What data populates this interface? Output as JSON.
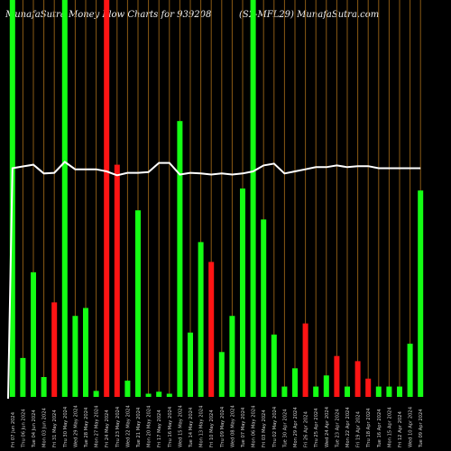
{
  "header": {
    "left": "MunafaSutra Money Flow Charts for 939208",
    "right": "(S2-MFL29) MunafaSutra.com"
  },
  "chart_data": {
    "type": "bar",
    "value_scale": "relative money flow (0–100, chart maximum = 100)",
    "bars": [
      {
        "label": "Fri 07 Jun 2024",
        "value": 100,
        "color": "green"
      },
      {
        "label": "Thu 06 Jun 2024",
        "value": 9.8,
        "color": "green"
      },
      {
        "label": "Tue 04 Jun 2024",
        "value": 31.4,
        "color": "green"
      },
      {
        "label": "Mon 03 Jun 2024",
        "value": 5.0,
        "color": "green"
      },
      {
        "label": "Fri 31 May 2024",
        "value": 23.8,
        "color": "red"
      },
      {
        "label": "Thu 30 May 2024",
        "value": 100,
        "color": "green"
      },
      {
        "label": "Wed 29 May 2024",
        "value": 20.4,
        "color": "green"
      },
      {
        "label": "Tue 28 May 2024",
        "value": 22.4,
        "color": "green"
      },
      {
        "label": "Mon 27 May 2024",
        "value": 1.5,
        "color": "green"
      },
      {
        "label": "Fri 24 May 2024",
        "value": 100,
        "color": "red"
      },
      {
        "label": "Thu 23 May 2024",
        "value": 58.5,
        "color": "red"
      },
      {
        "label": "Wed 22 May 2024",
        "value": 4.1,
        "color": "green"
      },
      {
        "label": "Tue 21 May 2024",
        "value": 47.0,
        "color": "green"
      },
      {
        "label": "Mon 20 May 2024",
        "value": 0.8,
        "color": "green"
      },
      {
        "label": "Fri 17 May 2024",
        "value": 1.3,
        "color": "green"
      },
      {
        "label": "Thu 16 May 2024",
        "value": 0.8,
        "color": "green"
      },
      {
        "label": "Wed 15 May 2024",
        "value": 69.5,
        "color": "green"
      },
      {
        "label": "Tue 14 May 2024",
        "value": 16.2,
        "color": "green"
      },
      {
        "label": "Mon 13 May 2024",
        "value": 39.0,
        "color": "green"
      },
      {
        "label": "Fri 10 May 2024",
        "value": 34.0,
        "color": "red"
      },
      {
        "label": "Thu 09 May 2024",
        "value": 11.3,
        "color": "green"
      },
      {
        "label": "Wed 08 May 2024",
        "value": 20.4,
        "color": "green"
      },
      {
        "label": "Tue 07 May 2024",
        "value": 52.5,
        "color": "green"
      },
      {
        "label": "Mon 06 May 2024",
        "value": 100,
        "color": "green"
      },
      {
        "label": "Fri 03 May 2024",
        "value": 44.7,
        "color": "green"
      },
      {
        "label": "Thu 02 May 2024",
        "value": 15.7,
        "color": "green"
      },
      {
        "label": "Tue 30 Apr 2024",
        "value": 2.6,
        "color": "green"
      },
      {
        "label": "Mon 29 Apr 2024",
        "value": 7.2,
        "color": "green"
      },
      {
        "label": "Fri 26 Apr 2024",
        "value": 18.5,
        "color": "red"
      },
      {
        "label": "Thu 25 Apr 2024",
        "value": 2.6,
        "color": "green"
      },
      {
        "label": "Wed 24 Apr 2024",
        "value": 5.4,
        "color": "green"
      },
      {
        "label": "Tue 23 Apr 2024",
        "value": 10.3,
        "color": "red"
      },
      {
        "label": "Mon 22 Apr 2024",
        "value": 2.6,
        "color": "green"
      },
      {
        "label": "Fri 19 Apr 2024",
        "value": 9.0,
        "color": "red"
      },
      {
        "label": "Thu 18 Apr 2024",
        "value": 4.6,
        "color": "red"
      },
      {
        "label": "Tue 16 Apr 2024",
        "value": 2.6,
        "color": "green"
      },
      {
        "label": "Mon 15 Apr 2024",
        "value": 2.6,
        "color": "green"
      },
      {
        "label": "Fri 12 Apr 2024",
        "value": 2.6,
        "color": "green"
      },
      {
        "label": "Wed 10 Apr 2024",
        "value": 13.4,
        "color": "green"
      },
      {
        "label": "Tue 09 Apr 2024",
        "value": 52.0,
        "color": "green"
      }
    ],
    "price_line": [
      65,
      65.5,
      66,
      63.5,
      63.7,
      66.8,
      64.7,
      64.7,
      64.7,
      64.1,
      63,
      63.7,
      63.7,
      63.9,
      66.5,
      66.5,
      63.2,
      63.7,
      63.5,
      63.2,
      63.5,
      63.2,
      63.5,
      64.1,
      65.8,
      66.3,
      63.5,
      64.1,
      64.7,
      65.3,
      65.3,
      65.8,
      65.3,
      65.6,
      65.6,
      65,
      65,
      65,
      65,
      65
    ],
    "grid": true,
    "colors": {
      "green": "#14ff14",
      "red": "#ff1414",
      "grid": "#8a5a14",
      "price_line": "#ffffff",
      "background": "#000000"
    }
  }
}
